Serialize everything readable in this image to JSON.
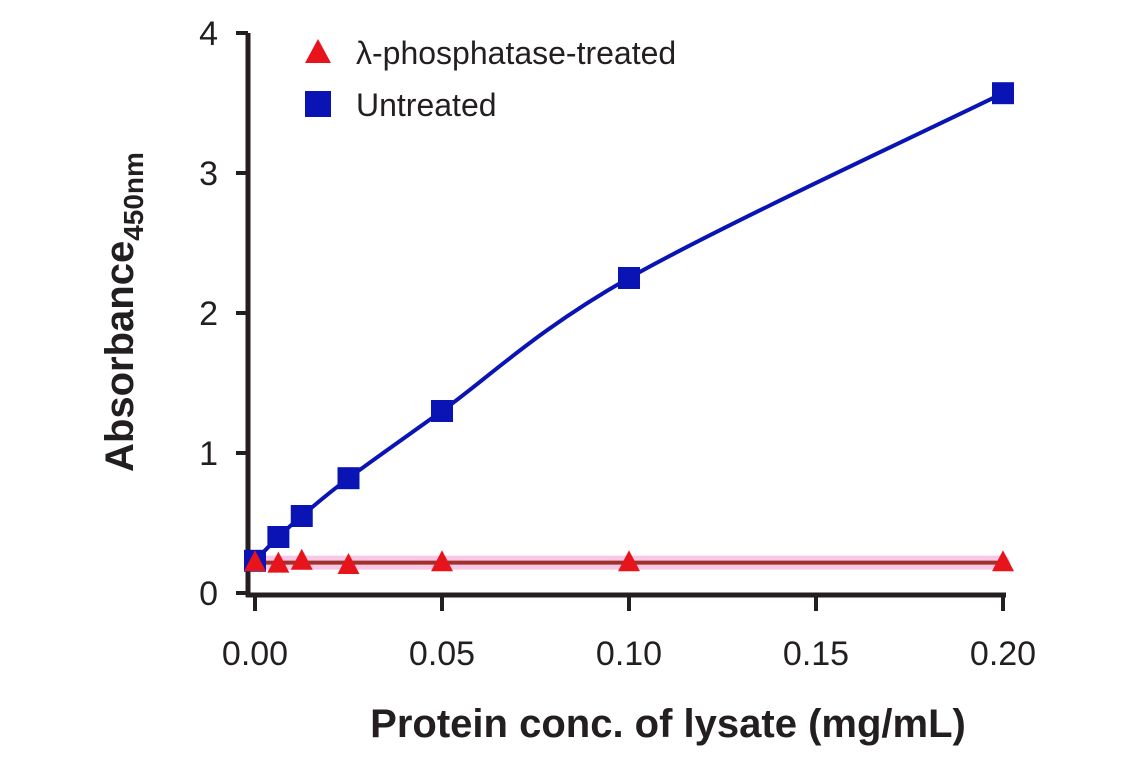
{
  "chart_data": {
    "type": "line",
    "xlabel": "Protein conc. of lysate (mg/mL)",
    "ylabel": "Absorbance",
    "ylabel_subscript": "450nm",
    "xlim": [
      0,
      0.2
    ],
    "ylim": [
      0,
      4
    ],
    "x_ticks": [
      0,
      0.05,
      0.1,
      0.15,
      0.2
    ],
    "x_tick_labels": [
      "0.00",
      "0.05",
      "0.10",
      "0.15",
      "0.20"
    ],
    "y_ticks": [
      0,
      1,
      2,
      3,
      4
    ],
    "y_tick_labels": [
      "0",
      "1",
      "2",
      "3",
      "4"
    ],
    "grid": false,
    "legend_position": "top-left",
    "series": [
      {
        "name": "λ-phosphatase-treated",
        "marker": "triangle",
        "color": "#e8141b",
        "line_color": "#a0302a",
        "x": [
          0,
          0.00625,
          0.0125,
          0.025,
          0.05,
          0.1,
          0.2
        ],
        "values": [
          0.22,
          0.21,
          0.23,
          0.2,
          0.22,
          0.22,
          0.22
        ]
      },
      {
        "name": "Untreated",
        "marker": "square",
        "color": "#0a14b4",
        "line_color": "#0a14b4",
        "x": [
          0,
          0.00625,
          0.0125,
          0.025,
          0.05,
          0.1,
          0.2
        ],
        "values": [
          0.23,
          0.4,
          0.55,
          0.82,
          1.3,
          2.25,
          3.57
        ]
      }
    ]
  }
}
